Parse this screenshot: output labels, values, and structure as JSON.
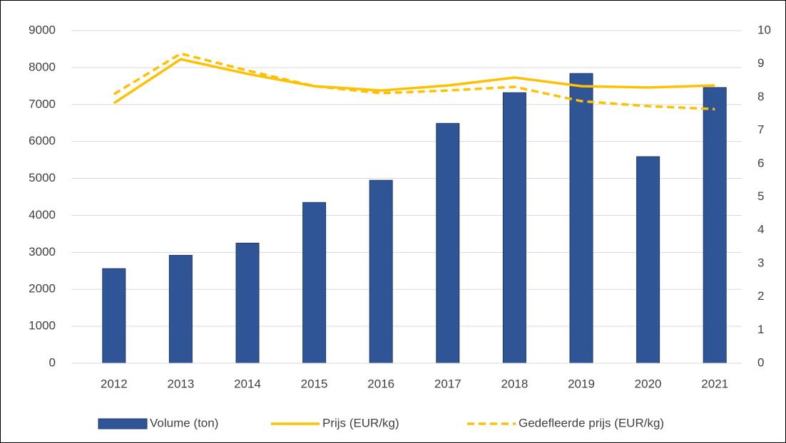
{
  "chart_data": {
    "type": "combo",
    "categories": [
      "2012",
      "2013",
      "2014",
      "2015",
      "2016",
      "2017",
      "2018",
      "2019",
      "2020",
      "2021"
    ],
    "series": [
      {
        "name": "Volume (ton)",
        "type": "bar",
        "color": "#2f5597",
        "values": [
          2560,
          2920,
          3250,
          4350,
          4950,
          6490,
          7320,
          7840,
          5590,
          7460
        ]
      },
      {
        "name": "Prijs (EUR/kg)",
        "type": "line",
        "axis": "y2",
        "color": "#ffc000",
        "values": [
          7.82,
          9.14,
          8.7,
          8.33,
          8.2,
          8.35,
          8.59,
          8.33,
          8.29,
          8.35
        ]
      },
      {
        "name": "Gedefleerde prijs (EUR/kg)",
        "type": "line",
        "dashed": true,
        "axis": "y2",
        "color": "#ffc000",
        "values": [
          8.09,
          9.31,
          8.8,
          8.33,
          8.12,
          8.2,
          8.31,
          7.88,
          7.73,
          7.64
        ]
      }
    ],
    "ylim": [
      0,
      9000
    ],
    "yticks": [
      0,
      1000,
      2000,
      3000,
      4000,
      5000,
      6000,
      7000,
      8000,
      9000
    ],
    "y2lim": [
      0,
      10
    ],
    "y2ticks": [
      0,
      1,
      2,
      3,
      4,
      5,
      6,
      7,
      8,
      9,
      10
    ],
    "grid": true,
    "legend": "bottom"
  }
}
